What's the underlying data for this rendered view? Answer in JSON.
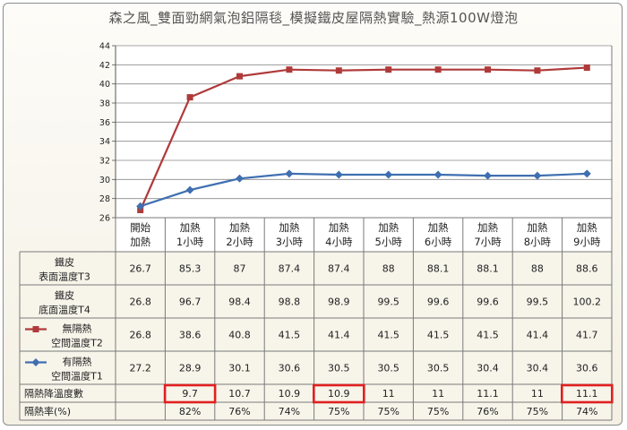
{
  "title": "森之風_雙面勁網氣泡鋁隔毯_模擬鐵皮屋隔熱實驗_熱源100W燈泡",
  "chart_data": {
    "type": "line",
    "title": "森之風_雙面勁網氣泡鋁隔毯_模擬鐵皮屋隔熱實驗_熱源100W燈泡",
    "ylim": [
      26,
      44
    ],
    "yticks": [
      26,
      28,
      30,
      32,
      34,
      36,
      38,
      40,
      42,
      44
    ],
    "grid": "horizontal",
    "categories": [
      [
        "開始",
        "加熱"
      ],
      [
        "加熱",
        "1小時"
      ],
      [
        "加熱",
        "2小時"
      ],
      [
        "加熱",
        "3小時"
      ],
      [
        "加熱",
        "4小時"
      ],
      [
        "加熱",
        "5小時"
      ],
      [
        "加熱",
        "6小時"
      ],
      [
        "加熱",
        "7小時"
      ],
      [
        "加熱",
        "8小時"
      ],
      [
        "加熱",
        "9小時"
      ]
    ],
    "series": [
      {
        "name": [
          "無隔熱",
          "空間溫度T2"
        ],
        "color": "#b03a3a",
        "marker": "square",
        "values": [
          26.8,
          38.6,
          40.8,
          41.5,
          41.4,
          41.5,
          41.5,
          41.5,
          41.4,
          41.7
        ]
      },
      {
        "name": [
          "有隔熱",
          "空間溫度T1"
        ],
        "color": "#3f6fb0",
        "marker": "diamond",
        "values": [
          27.2,
          28.9,
          30.1,
          30.6,
          30.5,
          30.5,
          30.5,
          30.4,
          30.4,
          30.6
        ]
      }
    ],
    "table": [
      {
        "label": [
          "鐵皮",
          "表面溫度T3"
        ],
        "values": [
          "26.7",
          "85.3",
          "87",
          "87.4",
          "87.4",
          "88",
          "88.1",
          "88.1",
          "88",
          "88.6"
        ]
      },
      {
        "label": [
          "鐵皮",
          "底面溫度T4"
        ],
        "values": [
          "26.8",
          "96.7",
          "98.4",
          "98.8",
          "98.9",
          "99.5",
          "99.6",
          "99.6",
          "99.5",
          "100.2"
        ]
      },
      {
        "label": [
          "無隔熱",
          "空間溫度T2"
        ],
        "legend_series": 0,
        "values": [
          "26.8",
          "38.6",
          "40.8",
          "41.5",
          "41.4",
          "41.5",
          "41.5",
          "41.5",
          "41.4",
          "41.7"
        ]
      },
      {
        "label": [
          "有隔熱",
          "空間溫度T1"
        ],
        "legend_series": 1,
        "values": [
          "27.2",
          "28.9",
          "30.1",
          "30.6",
          "30.5",
          "30.5",
          "30.5",
          "30.4",
          "30.4",
          "30.6"
        ]
      },
      {
        "label": [
          "隔熱降溫度數"
        ],
        "values": [
          "",
          "9.7",
          "10.7",
          "10.9",
          "10.9",
          "11",
          "11",
          "11.1",
          "11",
          "11.1"
        ],
        "highlighted": [
          1,
          4,
          9
        ],
        "highlight_color": "#e02020"
      },
      {
        "label": [
          "隔熱率(%)"
        ],
        "values": [
          "",
          "82%",
          "76%",
          "74%",
          "75%",
          "75%",
          "75%",
          "76%",
          "75%",
          "74%"
        ]
      }
    ]
  }
}
